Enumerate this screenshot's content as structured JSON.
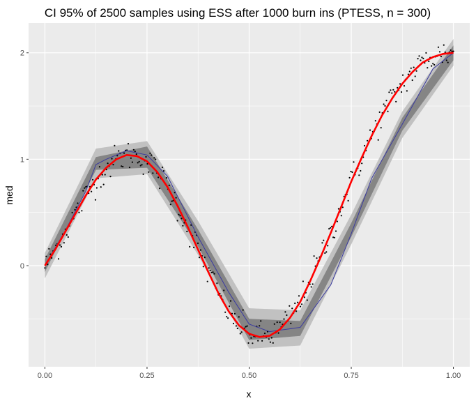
{
  "chart_data": {
    "type": "line",
    "title": "CI 95% of 2500 samples using ESS after 1000 burn ins (PTESS, n = 300)",
    "xlabel": "x",
    "ylabel": "med",
    "xlim": [
      -0.04,
      1.04
    ],
    "ylim": [
      -0.95,
      2.28
    ],
    "x_ticks": [
      0.0,
      0.25,
      0.5,
      0.75,
      1.0
    ],
    "x_tick_labels": [
      "0.00",
      "0.25",
      "0.50",
      "0.75",
      "1.00"
    ],
    "y_ticks": [
      0,
      1,
      2
    ],
    "y_tick_labels": [
      "0",
      "1",
      "2"
    ],
    "grid": true,
    "legend": "none",
    "colors": {
      "panel": "#ebebeb",
      "grid": "#ffffff",
      "band_outer": "#bdbdbd",
      "band_inner": "#7a7a7a",
      "median_line": "#3a3aa0",
      "true_curve": "#ff0000",
      "points": "#000000"
    },
    "series": [
      {
        "role": "band",
        "x": [
          0.0,
          0.125,
          0.25,
          0.375,
          0.5,
          0.625,
          0.75,
          0.875,
          1.0
        ],
        "lower_outer": [
          -0.12,
          0.82,
          0.86,
          0.1,
          -0.78,
          -0.75,
          0.2,
          1.2,
          1.88
        ],
        "upper_outer": [
          0.12,
          1.1,
          1.17,
          0.42,
          -0.4,
          -0.42,
          0.48,
          1.45,
          2.13
        ],
        "lower_inner": [
          -0.06,
          0.9,
          0.92,
          0.18,
          -0.7,
          -0.66,
          0.27,
          1.27,
          1.93
        ],
        "upper_inner": [
          0.06,
          1.02,
          1.12,
          0.34,
          -0.5,
          -0.52,
          0.4,
          1.39,
          2.07
        ]
      },
      {
        "role": "median",
        "x": [
          0.0,
          0.05,
          0.1,
          0.125,
          0.15,
          0.2,
          0.25,
          0.3,
          0.375,
          0.45,
          0.5,
          0.55,
          0.625,
          0.7,
          0.75,
          0.8,
          0.875,
          0.95,
          1.0
        ],
        "y": [
          0.0,
          0.33,
          0.7,
          0.95,
          1.0,
          1.08,
          1.04,
          0.84,
          0.27,
          -0.25,
          -0.55,
          -0.62,
          -0.58,
          -0.18,
          0.3,
          0.82,
          1.33,
          1.85,
          2.0
        ]
      },
      {
        "role": "true_function",
        "x": [
          0.0,
          0.025,
          0.05,
          0.075,
          0.1,
          0.125,
          0.15,
          0.175,
          0.2,
          0.225,
          0.25,
          0.275,
          0.3,
          0.325,
          0.35,
          0.375,
          0.4,
          0.425,
          0.45,
          0.475,
          0.5,
          0.525,
          0.55,
          0.575,
          0.6,
          0.625,
          0.65,
          0.675,
          0.7,
          0.725,
          0.75,
          0.775,
          0.8,
          0.825,
          0.85,
          0.875,
          0.9,
          0.925,
          0.95,
          0.975,
          1.0
        ],
        "y": [
          0.0,
          0.15,
          0.32,
          0.49,
          0.66,
          0.81,
          0.92,
          1.0,
          1.04,
          1.03,
          0.98,
          0.88,
          0.74,
          0.56,
          0.36,
          0.15,
          -0.06,
          -0.26,
          -0.43,
          -0.56,
          -0.64,
          -0.67,
          -0.66,
          -0.6,
          -0.49,
          -0.34,
          -0.14,
          0.08,
          0.31,
          0.55,
          0.79,
          1.01,
          1.22,
          1.41,
          1.57,
          1.71,
          1.82,
          1.91,
          1.96,
          1.99,
          2.0
        ]
      },
      {
        "role": "observations",
        "count": 300,
        "noise_sd": 0.07
      }
    ]
  }
}
